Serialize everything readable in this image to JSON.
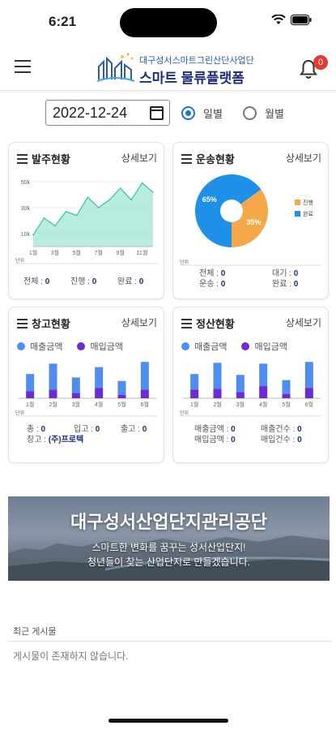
{
  "status": {
    "time": "6:21"
  },
  "header": {
    "logo_top": "대구성서스마트그린산단사업단",
    "logo_main": "스마트 물류플랫폼",
    "notification_count": "0"
  },
  "filter": {
    "date": "2022-12-24",
    "options": [
      "일별",
      "월별"
    ],
    "selected": "일별"
  },
  "cards": {
    "orders": {
      "title": "발주현황",
      "more": "상세보기",
      "stats": [
        {
          "label": "전체 : ",
          "value": "0"
        },
        {
          "label": "진행 : ",
          "value": "0"
        },
        {
          "label": "완료 : ",
          "value": "0"
        }
      ]
    },
    "transport": {
      "title": "운송현황",
      "more": "상세보기",
      "stats": [
        {
          "label": "전체 : ",
          "value": "0"
        },
        {
          "label": "대기 : ",
          "value": "0"
        },
        {
          "label": "운송 : ",
          "value": "0"
        },
        {
          "label": "완료 : ",
          "value": "0"
        }
      ]
    },
    "warehouse": {
      "title": "창고현황",
      "more": "상세보기",
      "legend": [
        "매출금액",
        "매입금액"
      ],
      "stats": [
        {
          "label": "총 : ",
          "value": "0"
        },
        {
          "label": "입고 : ",
          "value": "0"
        },
        {
          "label": "출고 : ",
          "value": "0"
        }
      ],
      "warehouse_line": {
        "label": "창고 : ",
        "value": "(주)프로텍"
      }
    },
    "settlement": {
      "title": "정산현황",
      "more": "상세보기",
      "legend": [
        "매출금액",
        "매입금액"
      ],
      "stats": [
        {
          "label": "매출금액 : ",
          "value": "0"
        },
        {
          "label": "매출건수 : ",
          "value": "0"
        },
        {
          "label": "매입금액 : ",
          "value": "0"
        },
        {
          "label": "매입건수 : ",
          "value": "0"
        }
      ]
    }
  },
  "banner": {
    "title": "대구성서산업단지관리공단",
    "line1": "스마트한 변화를 꿈꾸는 성서산업단지!",
    "line2": "청년들이 찾는 산업단지로 만들겠습니다."
  },
  "recent": {
    "label": "최근 게시물",
    "empty": "게시물이 존재하지 않습니다."
  },
  "colors": {
    "accent": "#1976d2",
    "sales": "#4f8ef0",
    "purchase": "#6b2bd6",
    "area": "#7fdcc8",
    "pie_blue": "#1e90e8",
    "pie_orange": "#f5a84a"
  },
  "chart_data": [
    {
      "type": "area",
      "x": [
        "1월",
        "2월",
        "3월",
        "4월",
        "5월",
        "6월",
        "7월",
        "8월",
        "9월",
        "10월",
        "11월",
        "12월"
      ],
      "xticks": [
        "1월",
        "3월",
        "5월",
        "7월",
        "9월",
        "11월"
      ],
      "yticks": [
        "10k",
        "30k",
        "50k"
      ],
      "values": [
        9,
        22,
        16,
        27,
        24,
        38,
        30,
        36,
        45,
        36,
        49,
        42
      ],
      "ylim": [
        0,
        55
      ],
      "unit": "단위"
    },
    {
      "type": "pie",
      "slices": [
        {
          "name": "진행",
          "value": 35,
          "label": "35%",
          "color": "#f5a84a"
        },
        {
          "name": "완료",
          "value": 65,
          "label": "65%",
          "color": "#1e90e8"
        }
      ],
      "unit": "단위"
    },
    {
      "type": "bar",
      "categories": [
        "1월",
        "2월",
        "3월",
        "4월",
        "5월",
        "6월"
      ],
      "series": [
        {
          "name": "매출금액",
          "values": [
            20,
            30,
            18,
            24,
            16,
            32
          ]
        },
        {
          "name": "매입금액",
          "values": [
            8,
            10,
            6,
            12,
            4,
            10
          ]
        }
      ],
      "ylim": [
        0,
        45
      ],
      "unit": "단위"
    },
    {
      "type": "bar",
      "categories": [
        "1월",
        "2월",
        "3월",
        "4월",
        "5월",
        "6월"
      ],
      "series": [
        {
          "name": "매출금액",
          "values": [
            18,
            30,
            20,
            26,
            16,
            30
          ]
        },
        {
          "name": "매입금액",
          "values": [
            10,
            11,
            7,
            14,
            5,
            12
          ]
        }
      ],
      "ylim": [
        0,
        45
      ],
      "unit": "단위"
    }
  ]
}
